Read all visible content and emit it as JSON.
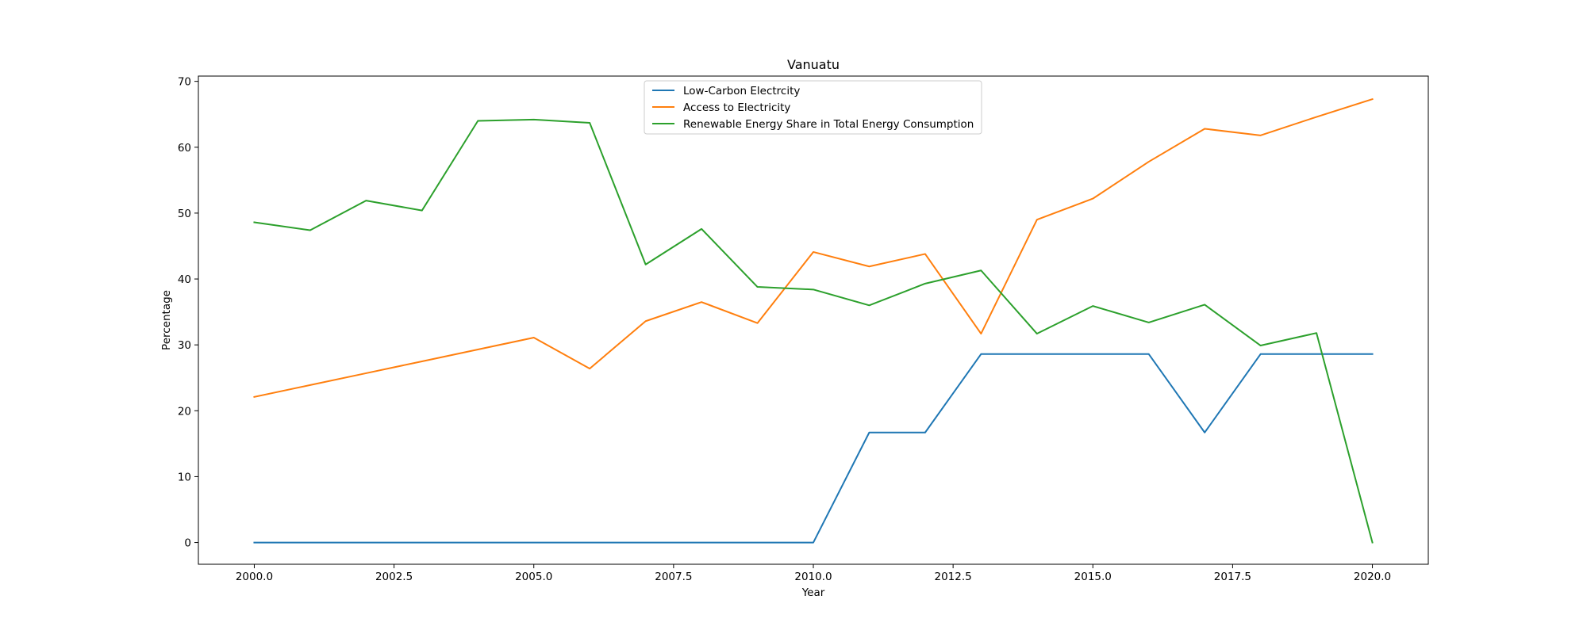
{
  "chart_data": {
    "type": "line",
    "title": "Vanuatu",
    "xlabel": "Year",
    "ylabel": "Percentage",
    "xlim": [
      1999,
      2021
    ],
    "ylim": [
      -3.3,
      70.8
    ],
    "xticks": [
      2000.0,
      2002.5,
      2005.0,
      2007.5,
      2010.0,
      2012.5,
      2015.0,
      2017.5,
      2020.0
    ],
    "xtick_labels": [
      "2000.0",
      "2002.5",
      "2005.0",
      "2007.5",
      "2010.0",
      "2012.5",
      "2015.0",
      "2017.5",
      "2020.0"
    ],
    "yticks": [
      0,
      10,
      20,
      30,
      40,
      50,
      60,
      70
    ],
    "ytick_labels": [
      "0",
      "10",
      "20",
      "30",
      "40",
      "50",
      "60",
      "70"
    ],
    "grid": false,
    "legend_position": "top-center",
    "x": [
      2000,
      2001,
      2002,
      2003,
      2004,
      2005,
      2006,
      2007,
      2008,
      2009,
      2010,
      2011,
      2012,
      2013,
      2014,
      2015,
      2016,
      2017,
      2018,
      2019,
      2020
    ],
    "series": [
      {
        "name": "Low-Carbon Electrcity",
        "color": "#1f77b4",
        "values": [
          0,
          0,
          0,
          0,
          0,
          0,
          0,
          0,
          0,
          0,
          0,
          16.7,
          16.7,
          28.6,
          28.6,
          28.6,
          28.6,
          16.7,
          28.6,
          28.6,
          28.6
        ]
      },
      {
        "name": "Access to Electricity",
        "color": "#ff7f0e",
        "values": [
          22.1,
          23.9,
          25.7,
          27.5,
          29.3,
          31.1,
          26.4,
          33.6,
          36.5,
          33.3,
          44.1,
          41.9,
          43.8,
          31.7,
          49.0,
          52.2,
          57.8,
          62.8,
          61.8,
          64.6,
          67.3
        ]
      },
      {
        "name": "Renewable Energy Share in Total Energy Consumption",
        "color": "#2ca02c",
        "values": [
          48.6,
          47.4,
          51.9,
          50.4,
          64.0,
          64.2,
          63.7,
          42.2,
          47.6,
          38.8,
          38.4,
          36.0,
          39.3,
          41.3,
          31.7,
          35.9,
          33.4,
          36.1,
          29.9,
          31.8,
          0
        ]
      }
    ]
  }
}
